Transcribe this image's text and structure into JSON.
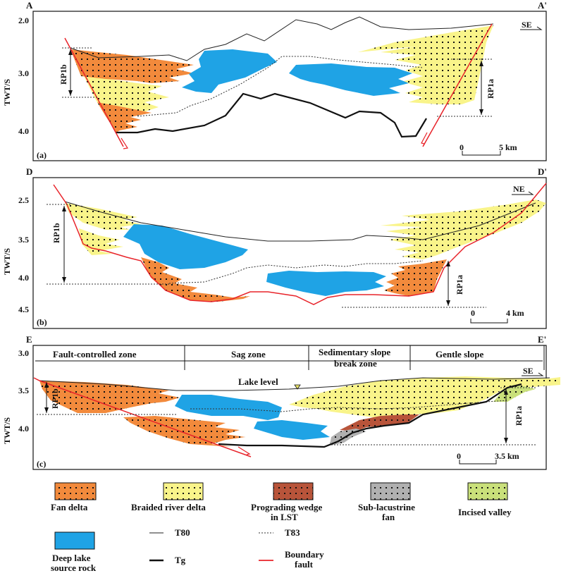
{
  "panels": [
    {
      "id": "a",
      "letter_left": "A",
      "letter_right": "A'",
      "panel_label": "(a)",
      "direction": "SE",
      "y_axis_title": "TWT/S",
      "ticks": [
        "2.0",
        "3.0",
        "4.0"
      ],
      "left_interval": "RP1b",
      "right_interval": "RP1a",
      "scale_zero": "0",
      "scale_value": "5 km"
    },
    {
      "id": "b",
      "letter_left": "D",
      "letter_right": "D'",
      "panel_label": "(b)",
      "direction": "NE",
      "y_axis_title": "TWT/S",
      "ticks": [
        "2.5",
        "3.5",
        "4.0",
        "4.5"
      ],
      "left_interval": "RP1b",
      "right_interval": "RP1a",
      "scale_zero": "0",
      "scale_value": "4 km"
    },
    {
      "id": "c",
      "letter_left": "E",
      "letter_right": "E'",
      "panel_label": "(c)",
      "direction": "SE",
      "y_axis_title": "TWT/S",
      "ticks": [
        "3.0",
        "3.5",
        "4.0"
      ],
      "left_interval": "RP1b",
      "right_interval": "RP1a",
      "scale_zero": "0",
      "scale_value": "3.5 km",
      "zones": [
        "Fault-controlled zone",
        "Sag zone",
        "Sedimentary slope",
        "break zone",
        "Gentle slope"
      ],
      "lake_level": "Lake level"
    }
  ],
  "legend": [
    {
      "name": "fan-delta",
      "lines": [
        "Fan delta"
      ]
    },
    {
      "name": "braided-river-delta",
      "lines": [
        "Braided river delta"
      ]
    },
    {
      "name": "prograding-wedge",
      "lines": [
        "Prograding wedge",
        "in LST"
      ]
    },
    {
      "name": "sub-lacustrine-fan",
      "lines": [
        "Sub-lacustrine",
        "fan"
      ]
    },
    {
      "name": "incised-valley",
      "lines": [
        "Incised valley"
      ]
    },
    {
      "name": "deep-lake-source-rock",
      "lines": [
        "Deep lake",
        "source rock"
      ]
    },
    {
      "name": "t80",
      "lines": [
        "T80"
      ]
    },
    {
      "name": "tg",
      "lines": [
        "Tg"
      ]
    },
    {
      "name": "t83",
      "lines": [
        "T83"
      ]
    },
    {
      "name": "boundary-fault",
      "lines": [
        "Boundary",
        "fault"
      ]
    }
  ],
  "colors": {
    "fan_delta": "#f28a3c",
    "braided": "#f9f48a",
    "prograding": "#b8543a",
    "sub_fan": "#b0b0b0",
    "incised": "#c9e07a",
    "source_rock": "#1fa3e5",
    "fault": "#e8232a"
  }
}
